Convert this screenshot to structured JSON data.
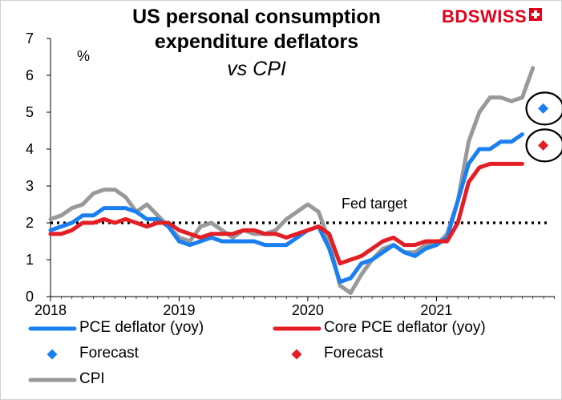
{
  "brand": {
    "name": "BDSWISS",
    "color": "#e2001a"
  },
  "chart_data": {
    "type": "line",
    "title": "US personal consumption expenditure deflators",
    "subtitle": "vs CPI",
    "ylabel": "%",
    "ylim": [
      0,
      7
    ],
    "yticks": [
      0,
      1,
      2,
      3,
      4,
      5,
      6,
      7
    ],
    "xlim": [
      2018.0,
      2021.92
    ],
    "xticks": [
      2018,
      2019,
      2020,
      2021
    ],
    "xtick_labels": [
      "2018",
      "2019",
      "2020",
      "2021"
    ],
    "reference_line": {
      "label": "Fed target",
      "value": 2
    },
    "x_start": 2018.0,
    "x_step_months": 1,
    "series": [
      {
        "name": "PCE deflator (yoy)",
        "color": "#1a7ff0",
        "kind": "line",
        "values": [
          1.8,
          1.9,
          2.0,
          2.2,
          2.2,
          2.4,
          2.4,
          2.4,
          2.3,
          2.1,
          2.1,
          1.9,
          1.5,
          1.4,
          1.5,
          1.6,
          1.5,
          1.5,
          1.5,
          1.5,
          1.4,
          1.4,
          1.4,
          1.6,
          1.8,
          1.9,
          1.3,
          0.4,
          0.5,
          0.9,
          1.0,
          1.2,
          1.4,
          1.2,
          1.1,
          1.3,
          1.4,
          1.6,
          2.6,
          3.6,
          4.0,
          4.0,
          4.2,
          4.2,
          4.4
        ]
      },
      {
        "name": "Core PCE deflator (yoy)",
        "color": "#e31e25",
        "kind": "line",
        "values": [
          1.7,
          1.7,
          1.8,
          2.0,
          2.0,
          2.1,
          2.0,
          2.1,
          2.0,
          1.9,
          2.0,
          2.0,
          1.8,
          1.7,
          1.6,
          1.7,
          1.7,
          1.7,
          1.8,
          1.8,
          1.7,
          1.7,
          1.6,
          1.7,
          1.8,
          1.9,
          1.7,
          0.9,
          1.0,
          1.1,
          1.3,
          1.5,
          1.6,
          1.4,
          1.4,
          1.5,
          1.5,
          1.5,
          2.0,
          3.1,
          3.5,
          3.6,
          3.6,
          3.6,
          3.6
        ]
      },
      {
        "name": "CPI",
        "color": "#999999",
        "kind": "line",
        "values": [
          2.1,
          2.2,
          2.4,
          2.5,
          2.8,
          2.9,
          2.9,
          2.7,
          2.3,
          2.5,
          2.2,
          1.9,
          1.6,
          1.5,
          1.9,
          2.0,
          1.8,
          1.6,
          1.8,
          1.7,
          1.7,
          1.8,
          2.1,
          2.3,
          2.5,
          2.3,
          1.5,
          0.3,
          0.1,
          0.6,
          1.0,
          1.3,
          1.4,
          1.2,
          1.2,
          1.4,
          1.4,
          1.7,
          2.6,
          4.2,
          5.0,
          5.4,
          5.4,
          5.3,
          5.4,
          6.2
        ]
      },
      {
        "name": "Forecast",
        "color": "#1a7ff0",
        "kind": "marker",
        "x": 2021.83,
        "value": 5.1
      },
      {
        "name": "Forecast",
        "color": "#e31e25",
        "kind": "marker",
        "x": 2021.83,
        "value": 4.1
      }
    ],
    "legend": [
      {
        "label": "PCE deflator (yoy)",
        "swatch": "line",
        "color": "#1a7ff0"
      },
      {
        "label": "Core PCE deflator (yoy)",
        "swatch": "line",
        "color": "#e31e25"
      },
      {
        "label": "Forecast",
        "swatch": "diamond",
        "color": "#1a7ff0"
      },
      {
        "label": "Forecast",
        "swatch": "diamond",
        "color": "#e31e25"
      },
      {
        "label": "CPI",
        "swatch": "line",
        "color": "#999999"
      }
    ],
    "legend_position": "bottom"
  }
}
